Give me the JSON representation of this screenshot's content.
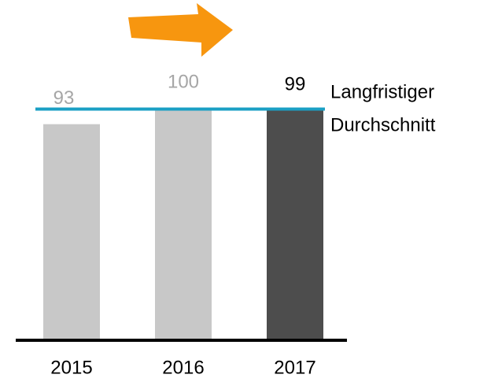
{
  "chart_data": {
    "type": "bar",
    "categories": [
      "2015",
      "2016",
      "2017"
    ],
    "values": [
      93,
      100,
      99
    ],
    "colors": [
      "#c8c8c8",
      "#c8c8c8",
      "#4d4d4d"
    ],
    "label_colors": [
      "#a6a6a6",
      "#a6a6a6",
      "#000000"
    ],
    "ylim": [
      0,
      100
    ],
    "reference_line": {
      "value": 99.5,
      "color": "#1a9fc4",
      "label": [
        "Langfristiger",
        "Durchschnitt"
      ]
    }
  }
}
